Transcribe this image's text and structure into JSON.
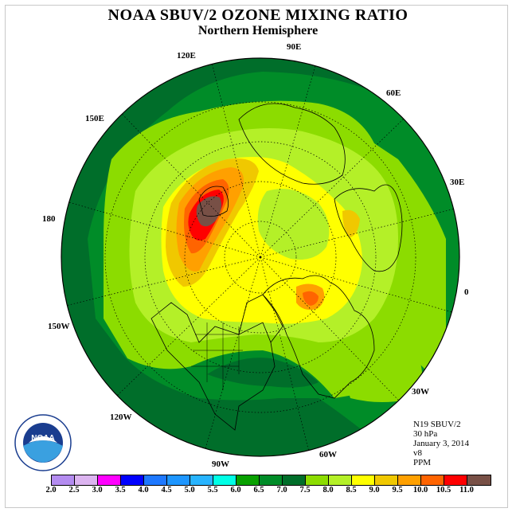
{
  "title": "NOAA SBUV/2 OZONE MIXING RATIO",
  "subtitle": "Northern Hemisphere",
  "longitude_labels": {
    "e90": "90E",
    "e120": "120E",
    "e60": "60E",
    "e150": "150E",
    "e30": "30E",
    "d180": "180",
    "zero": "0",
    "w150": "150W",
    "w30": "30W",
    "w120": "120W",
    "w60": "60W",
    "w90": "90W"
  },
  "info": {
    "instrument": "N19 SBUV/2",
    "level": "30 hPa",
    "date": "January 3, 2014",
    "version": "v8",
    "units": "PPM"
  },
  "colorbar": {
    "colors": [
      "#b48cf0",
      "#dcb4f0",
      "#ff00ff",
      "#0000ff",
      "#1e78ff",
      "#1e96ff",
      "#28b4ff",
      "#00ffe6",
      "#08a000",
      "#008c28",
      "#006e2a",
      "#8cdc00",
      "#b4f028",
      "#ffff00",
      "#f0c800",
      "#ffa000",
      "#ff6400",
      "#ff0000",
      "#785046"
    ],
    "tick_labels": [
      "2.0",
      "2.5",
      "3.0",
      "3.5",
      "4.0",
      "4.5",
      "5.0",
      "5.5",
      "6.0",
      "6.5",
      "7.0",
      "7.5",
      "8.0",
      "8.5",
      "9.0",
      "9.5",
      "10.0",
      "10.5",
      "11.0"
    ]
  },
  "logo_text": "NOAA",
  "field_colors": {
    "dark_green": "#006e2a",
    "mid_green": "#008c28",
    "light_green": "#8cdc00",
    "yellow_green": "#b4f028",
    "yellow": "#ffff00",
    "gold": "#f0c800",
    "orange": "#ffa000",
    "red_orange": "#ff6400",
    "red": "#ff0000",
    "brown": "#785046"
  }
}
